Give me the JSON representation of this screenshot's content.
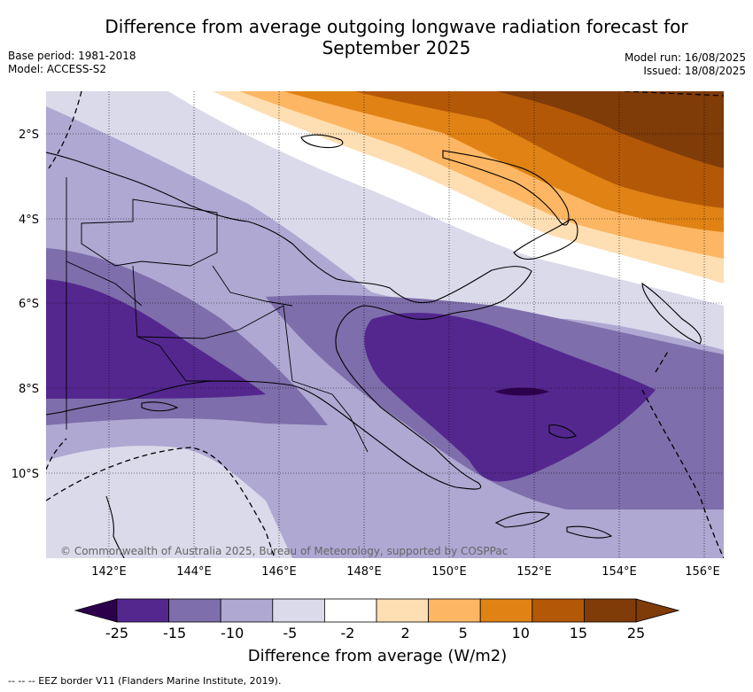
{
  "title": "Difference from average outgoing longwave radiation forecast for September 2025",
  "meta": {
    "base_period": "Base period: 1981-2018",
    "model": "Model: ACCESS-S2",
    "model_run": "Model run: 16/08/2025",
    "issued": "Issued: 18/08/2025"
  },
  "map": {
    "lat_labels": [
      "2°S",
      "4°S",
      "6°S",
      "8°S",
      "10°S"
    ],
    "lon_labels": [
      "142°E",
      "144°E",
      "146°E",
      "148°E",
      "150°E",
      "152°E",
      "154°E",
      "156°E"
    ],
    "copyright": "© Commonwealth of Australia 2025, Bureau of Meteorology, supported by COSPPac"
  },
  "colorbar": {
    "ticks": [
      "-25",
      "-15",
      "-10",
      "-5",
      "-2",
      "2",
      "5",
      "10",
      "15",
      "25"
    ],
    "colors": [
      "#54278f",
      "#7e6eab",
      "#aea8d2",
      "#dadaeb",
      "#ffffff",
      "#fedeb3",
      "#fdb663",
      "#e08214",
      "#b35806",
      "#7f3b08"
    ],
    "under_color": "#2d004b",
    "over_color": "#7f3b08",
    "title": "Difference from average (W/m2)"
  },
  "footnote": "--  --  -- EEZ border V11 (Flanders Marine Institute, 2019)."
}
